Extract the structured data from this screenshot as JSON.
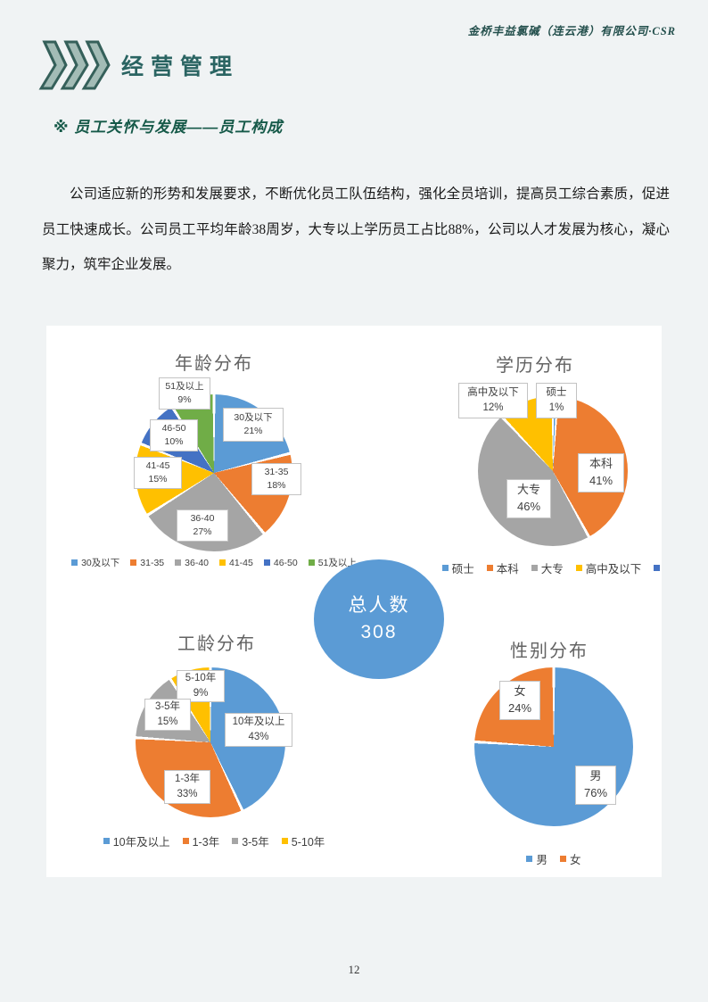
{
  "page": {
    "header_right": "金桥丰益氯碱（连云港）有限公司·CSR",
    "section_title": "经营管理",
    "subtitle": "※ 员工关怀与发展——员工构成",
    "paragraph": "公司适应新的形势和发展要求，不断优化员工队伍结构，强化全员培训，提高员工综合素质，促进员工快速成长。公司员工平均年龄38周岁，大专以上学历员工占比88%，公司以人才发展为核心，凝心聚力，筑牢企业发展。",
    "page_number": "12"
  },
  "colors": {
    "accent_teal": "#2a6462",
    "chevron_fill": "#a3bcb6",
    "chevron_stroke": "#35605a",
    "subtitle_green": "#155948",
    "page_background": "#f0f3f4"
  },
  "total_badge": {
    "label": "总人数",
    "value": "308",
    "color": "#5b9bd5"
  },
  "chart_data": [
    {
      "type": "pie",
      "title": "年龄分布",
      "legend_position": "bottom",
      "colors": [
        "#5b9bd5",
        "#ed7d31",
        "#a5a5a5",
        "#ffc000",
        "#4472c4",
        "#70ad47"
      ],
      "slices": [
        {
          "label": "30及以下",
          "value": 21,
          "pct": "21%"
        },
        {
          "label": "31-35",
          "value": 18,
          "pct": "18%"
        },
        {
          "label": "36-40",
          "value": 27,
          "pct": "27%"
        },
        {
          "label": "41-45",
          "value": 15,
          "pct": "15%"
        },
        {
          "label": "46-50",
          "value": 10,
          "pct": "10%"
        },
        {
          "label": "51及以上",
          "value": 9,
          "pct": "9%"
        }
      ]
    },
    {
      "type": "pie",
      "title": "学历分布",
      "legend_position": "bottom",
      "colors": [
        "#5b9bd5",
        "#ed7d31",
        "#a5a5a5",
        "#ffc000"
      ],
      "extra_legend": {
        "color": "#4472c4",
        "label": ""
      },
      "slices": [
        {
          "label": "硕士",
          "value": 1,
          "pct": "1%"
        },
        {
          "label": "本科",
          "value": 41,
          "pct": "41%"
        },
        {
          "label": "大专",
          "value": 46,
          "pct": "46%"
        },
        {
          "label": "高中及以下",
          "value": 12,
          "pct": "12%"
        }
      ]
    },
    {
      "type": "pie",
      "title": "工龄分布",
      "legend_position": "bottom",
      "colors": [
        "#5b9bd5",
        "#ed7d31",
        "#a5a5a5",
        "#ffc000"
      ],
      "slices": [
        {
          "label": "10年及以上",
          "value": 43,
          "pct": "43%"
        },
        {
          "label": "1-3年",
          "value": 33,
          "pct": "33%"
        },
        {
          "label": "3-5年",
          "value": 15,
          "pct": "15%"
        },
        {
          "label": "5-10年",
          "value": 9,
          "pct": "9%"
        }
      ]
    },
    {
      "type": "pie",
      "title": "性别分布",
      "legend_position": "bottom",
      "colors": [
        "#5b9bd5",
        "#ed7d31"
      ],
      "slices": [
        {
          "label": "男",
          "value": 76,
          "pct": "76%"
        },
        {
          "label": "女",
          "value": 24,
          "pct": "24%"
        }
      ]
    }
  ]
}
